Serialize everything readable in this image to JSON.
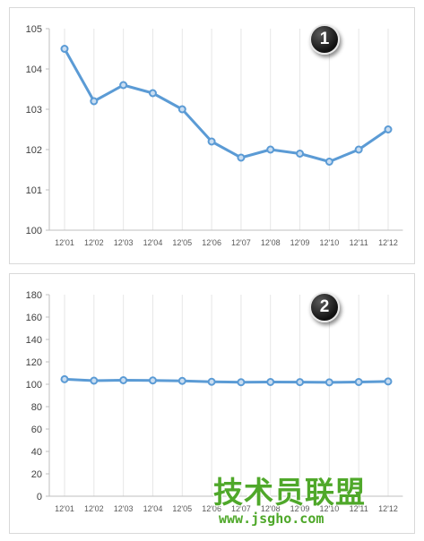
{
  "chart_data": [
    {
      "type": "line",
      "categories": [
        "12'01",
        "12'02",
        "12'03",
        "12'04",
        "12'05",
        "12'06",
        "12'07",
        "12'08",
        "12'09",
        "12'10",
        "12'11",
        "12'12"
      ],
      "values": [
        104.5,
        103.2,
        103.6,
        103.4,
        103.0,
        102.2,
        101.8,
        102.0,
        101.9,
        101.7,
        102.0,
        102.5
      ],
      "ylim": [
        100,
        105
      ],
      "yticks": [
        100,
        101,
        102,
        103,
        104,
        105
      ],
      "grid": "vertical",
      "badge": "1",
      "line_color": "#5b9bd5"
    },
    {
      "type": "line",
      "categories": [
        "12'01",
        "12'02",
        "12'03",
        "12'04",
        "12'05",
        "12'06",
        "12'07",
        "12'08",
        "12'09",
        "12'10",
        "12'11",
        "12'12"
      ],
      "values": [
        104.5,
        103.2,
        103.6,
        103.4,
        103.0,
        102.2,
        101.8,
        102.0,
        101.9,
        101.7,
        102.0,
        102.5
      ],
      "ylim": [
        0,
        180
      ],
      "yticks": [
        0,
        20,
        40,
        60,
        80,
        100,
        120,
        140,
        160,
        180
      ],
      "grid": "vertical",
      "badge": "2",
      "line_color": "#5b9bd5"
    }
  ],
  "watermark": {
    "brand": "技术员联盟",
    "url": "www.jsgho.com",
    "color": "#4fa82a"
  }
}
